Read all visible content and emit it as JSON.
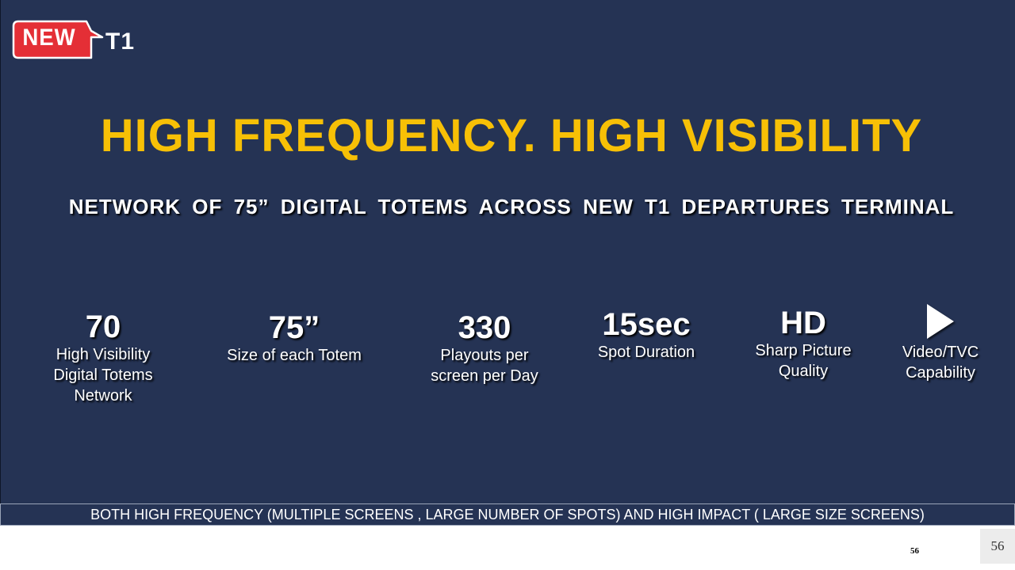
{
  "logo": {
    "badge_text": "NEW",
    "suffix_text": "T1",
    "badge_color": "#e42f36"
  },
  "headline": "HIGH FREQUENCY. HIGH VISIBILITY",
  "subheadline": "NETWORK OF 75” DIGITAL TOTEMS ACROSS NEW T1 DEPARTURES TERMINAL",
  "stats": [
    {
      "value": "70",
      "label": "High Visibility\nDigital Totems\nNetwork"
    },
    {
      "value": "75”",
      "label": "Size of each Totem"
    },
    {
      "value": "330",
      "label": "Playouts per\nscreen per Day"
    },
    {
      "value": "15sec",
      "label": "Spot Duration"
    },
    {
      "value": "HD",
      "label": "Sharp Picture\nQuality"
    },
    {
      "icon": "play-icon",
      "label": "Video/TVC\nCapability"
    }
  ],
  "footer": "BOTH HIGH FREQUENCY (MULTIPLE SCREENS , LARGE NUMBER OF SPOTS) AND HIGH IMPACT ( LARGE SIZE SCREENS)",
  "page_number_small": "56",
  "page_number": "56",
  "colors": {
    "background": "#253354",
    "headline": "#f7c006",
    "text": "#ffffff"
  }
}
